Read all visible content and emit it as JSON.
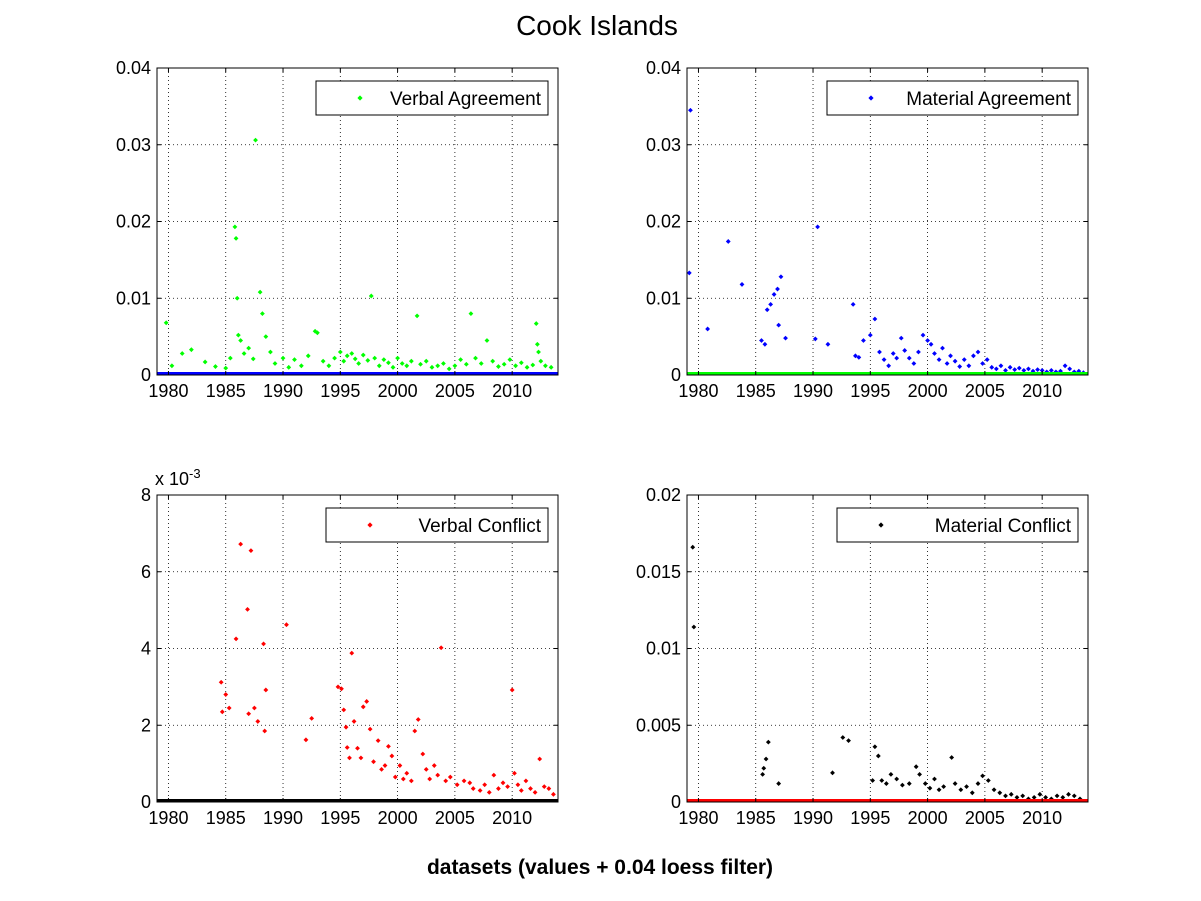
{
  "title": "Cook Islands",
  "xlabel": "datasets (values + 0.04 loess filter)",
  "chart_data": [
    {
      "type": "scatter",
      "legend": "Verbal Agreement",
      "legend_location": "top-right",
      "color": "#00ff00",
      "filter_color": "#0000ff",
      "grid": true,
      "xlim": [
        1979,
        2014
      ],
      "ylim": [
        0,
        0.04
      ],
      "xticks": [
        1980,
        1985,
        1990,
        1995,
        2000,
        2005,
        2010
      ],
      "yticks": [
        0,
        0.01,
        0.02,
        0.03,
        0.04
      ],
      "ytick_labels": [
        "0",
        "0.01",
        "0.02",
        "0.03",
        "0.04"
      ],
      "scale_label": "",
      "filter": {
        "x": [
          1979,
          2014
        ],
        "y": [
          0.0001,
          0.0001
        ]
      },
      "points": [
        [
          1979.8,
          0.0068
        ],
        [
          1980.3,
          0.0012
        ],
        [
          1981.2,
          0.0028
        ],
        [
          1982.0,
          0.0033
        ],
        [
          1983.2,
          0.0017
        ],
        [
          1984.1,
          0.0011
        ],
        [
          1985.0,
          0.0009
        ],
        [
          1985.4,
          0.0022
        ],
        [
          1985.8,
          0.0193
        ],
        [
          1985.9,
          0.0178
        ],
        [
          1986.0,
          0.01
        ],
        [
          1986.1,
          0.0052
        ],
        [
          1986.3,
          0.0045
        ],
        [
          1986.6,
          0.0028
        ],
        [
          1987.0,
          0.0035
        ],
        [
          1987.4,
          0.0021
        ],
        [
          1987.6,
          0.0306
        ],
        [
          1988.0,
          0.0108
        ],
        [
          1988.2,
          0.008
        ],
        [
          1988.5,
          0.005
        ],
        [
          1988.9,
          0.003
        ],
        [
          1989.3,
          0.0015
        ],
        [
          1990.0,
          0.0022
        ],
        [
          1990.5,
          0.001
        ],
        [
          1991.0,
          0.002
        ],
        [
          1991.6,
          0.0012
        ],
        [
          1992.2,
          0.0025
        ],
        [
          1992.8,
          0.0057
        ],
        [
          1993.0,
          0.0055
        ],
        [
          1993.5,
          0.0018
        ],
        [
          1994.0,
          0.0012
        ],
        [
          1994.5,
          0.0022
        ],
        [
          1995.0,
          0.003
        ],
        [
          1995.3,
          0.0018
        ],
        [
          1995.6,
          0.0025
        ],
        [
          1996.0,
          0.0028
        ],
        [
          1996.3,
          0.0021
        ],
        [
          1996.6,
          0.0015
        ],
        [
          1997.0,
          0.0026
        ],
        [
          1997.4,
          0.0019
        ],
        [
          1997.7,
          0.0103
        ],
        [
          1998.0,
          0.0022
        ],
        [
          1998.4,
          0.0012
        ],
        [
          1998.8,
          0.002
        ],
        [
          1999.2,
          0.0016
        ],
        [
          1999.6,
          0.001
        ],
        [
          2000.0,
          0.0022
        ],
        [
          2000.4,
          0.0015
        ],
        [
          2000.8,
          0.0012
        ],
        [
          2001.2,
          0.0018
        ],
        [
          2001.7,
          0.0077
        ],
        [
          2002.0,
          0.0014
        ],
        [
          2002.5,
          0.0018
        ],
        [
          2003.0,
          0.001
        ],
        [
          2003.5,
          0.0012
        ],
        [
          2004.0,
          0.0015
        ],
        [
          2004.5,
          0.0008
        ],
        [
          2005.0,
          0.0012
        ],
        [
          2005.5,
          0.002
        ],
        [
          2006.0,
          0.0014
        ],
        [
          2006.4,
          0.008
        ],
        [
          2006.8,
          0.0022
        ],
        [
          2007.3,
          0.0015
        ],
        [
          2007.8,
          0.0045
        ],
        [
          2008.3,
          0.0018
        ],
        [
          2008.8,
          0.0011
        ],
        [
          2009.3,
          0.0014
        ],
        [
          2009.8,
          0.002
        ],
        [
          2010.3,
          0.0012
        ],
        [
          2010.8,
          0.0016
        ],
        [
          2011.3,
          0.001
        ],
        [
          2011.8,
          0.0013
        ],
        [
          2012.1,
          0.0067
        ],
        [
          2012.2,
          0.004
        ],
        [
          2012.3,
          0.003
        ],
        [
          2012.5,
          0.0018
        ],
        [
          2012.9,
          0.0012
        ],
        [
          2013.4,
          0.001
        ]
      ]
    },
    {
      "type": "scatter",
      "legend": "Material Agreement",
      "legend_location": "top-right",
      "color": "#0000ff",
      "filter_color": "#00ff00",
      "grid": true,
      "xlim": [
        1979,
        2014
      ],
      "ylim": [
        0,
        0.04
      ],
      "xticks": [
        1980,
        1985,
        1990,
        1995,
        2000,
        2005,
        2010
      ],
      "yticks": [
        0,
        0.01,
        0.02,
        0.03,
        0.04
      ],
      "ytick_labels": [
        "0",
        "0.01",
        "0.02",
        "0.03",
        "0.04"
      ],
      "scale_label": "",
      "filter": {
        "x": [
          1979,
          2014
        ],
        "y": [
          0.0001,
          0.0001
        ]
      },
      "points": [
        [
          1979.3,
          0.0345
        ],
        [
          1979.2,
          0.0133
        ],
        [
          1980.8,
          0.006
        ],
        [
          1982.6,
          0.0174
        ],
        [
          1983.8,
          0.0118
        ],
        [
          1985.5,
          0.0045
        ],
        [
          1985.8,
          0.004
        ],
        [
          1986.0,
          0.0085
        ],
        [
          1986.3,
          0.0092
        ],
        [
          1986.6,
          0.0105
        ],
        [
          1986.9,
          0.0112
        ],
        [
          1987.2,
          0.0128
        ],
        [
          1987.0,
          0.0065
        ],
        [
          1987.6,
          0.0048
        ],
        [
          1990.4,
          0.0193
        ],
        [
          1990.2,
          0.0047
        ],
        [
          1991.3,
          0.004
        ],
        [
          1993.5,
          0.0092
        ],
        [
          1993.7,
          0.0025
        ],
        [
          1994.0,
          0.0023
        ],
        [
          1994.4,
          0.0045
        ],
        [
          1995.0,
          0.0052
        ],
        [
          1995.4,
          0.0073
        ],
        [
          1995.8,
          0.003
        ],
        [
          1996.2,
          0.002
        ],
        [
          1996.6,
          0.0012
        ],
        [
          1997.0,
          0.0028
        ],
        [
          1997.3,
          0.0022
        ],
        [
          1997.7,
          0.0048
        ],
        [
          1998.0,
          0.0032
        ],
        [
          1998.4,
          0.0022
        ],
        [
          1998.8,
          0.0015
        ],
        [
          1999.2,
          0.003
        ],
        [
          1999.6,
          0.0052
        ],
        [
          2000.0,
          0.0045
        ],
        [
          2000.3,
          0.004
        ],
        [
          2000.6,
          0.0028
        ],
        [
          2001.0,
          0.002
        ],
        [
          2001.3,
          0.0035
        ],
        [
          2001.7,
          0.0015
        ],
        [
          2002.0,
          0.0025
        ],
        [
          2002.4,
          0.0018
        ],
        [
          2002.8,
          0.0011
        ],
        [
          2003.2,
          0.002
        ],
        [
          2003.6,
          0.0012
        ],
        [
          2004.0,
          0.0025
        ],
        [
          2004.4,
          0.003
        ],
        [
          2004.8,
          0.0015
        ],
        [
          2005.2,
          0.002
        ],
        [
          2005.6,
          0.001
        ],
        [
          2006.0,
          0.0008
        ],
        [
          2006.4,
          0.0012
        ],
        [
          2006.8,
          0.0006
        ],
        [
          2007.2,
          0.001
        ],
        [
          2007.6,
          0.0007
        ],
        [
          2008.0,
          0.0009
        ],
        [
          2008.4,
          0.0006
        ],
        [
          2008.8,
          0.0008
        ],
        [
          2009.2,
          0.0005
        ],
        [
          2009.6,
          0.0007
        ],
        [
          2010.0,
          0.0006
        ],
        [
          2010.4,
          0.0004
        ],
        [
          2010.8,
          0.0006
        ],
        [
          2011.2,
          0.0004
        ],
        [
          2011.6,
          0.0005
        ],
        [
          2012.0,
          0.0012
        ],
        [
          2012.4,
          0.0008
        ],
        [
          2012.8,
          0.0004
        ],
        [
          2013.2,
          0.0005
        ],
        [
          2013.6,
          0.0003
        ]
      ]
    },
    {
      "type": "scatter",
      "legend": "Verbal Conflict",
      "legend_location": "top-right",
      "color": "#ff0000",
      "filter_color": "#000000",
      "grid": true,
      "xlim": [
        1979,
        2014
      ],
      "ylim": [
        0,
        8
      ],
      "xticks": [
        1980,
        1985,
        1990,
        1995,
        2000,
        2005,
        2010
      ],
      "yticks": [
        0,
        2,
        4,
        6,
        8
      ],
      "ytick_labels": [
        "0",
        "2",
        "4",
        "6",
        "8"
      ],
      "scale_label": "x 10",
      "scale_exponent": "-3",
      "filter": {
        "x": [
          1979,
          2014
        ],
        "y": [
          0.02,
          0.02
        ]
      },
      "points": [
        [
          1984.6,
          3.12
        ],
        [
          1984.7,
          2.35
        ],
        [
          1985.0,
          2.8
        ],
        [
          1985.3,
          2.45
        ],
        [
          1985.9,
          4.25
        ],
        [
          1986.3,
          6.72
        ],
        [
          1986.9,
          5.02
        ],
        [
          1987.2,
          6.55
        ],
        [
          1987.0,
          2.3
        ],
        [
          1987.5,
          2.45
        ],
        [
          1987.8,
          2.1
        ],
        [
          1988.3,
          4.12
        ],
        [
          1988.5,
          2.92
        ],
        [
          1988.4,
          1.85
        ],
        [
          1990.3,
          4.62
        ],
        [
          1992.0,
          1.62
        ],
        [
          1992.5,
          2.18
        ],
        [
          1994.8,
          3.0
        ],
        [
          1995.1,
          2.95
        ],
        [
          1995.3,
          2.4
        ],
        [
          1995.5,
          1.95
        ],
        [
          1995.6,
          1.42
        ],
        [
          1995.8,
          1.15
        ],
        [
          1996.0,
          3.88
        ],
        [
          1996.2,
          2.1
        ],
        [
          1996.5,
          1.4
        ],
        [
          1996.8,
          1.15
        ],
        [
          1997.0,
          2.48
        ],
        [
          1997.3,
          2.62
        ],
        [
          1997.6,
          1.9
        ],
        [
          1997.9,
          1.05
        ],
        [
          1998.3,
          1.6
        ],
        [
          1998.6,
          0.85
        ],
        [
          1998.9,
          0.95
        ],
        [
          1999.2,
          1.45
        ],
        [
          1999.5,
          1.2
        ],
        [
          1999.8,
          0.65
        ],
        [
          2000.2,
          0.95
        ],
        [
          2000.5,
          0.6
        ],
        [
          2000.8,
          0.75
        ],
        [
          2001.2,
          0.55
        ],
        [
          2001.5,
          1.85
        ],
        [
          2001.8,
          2.15
        ],
        [
          2002.2,
          1.25
        ],
        [
          2002.5,
          0.85
        ],
        [
          2002.8,
          0.6
        ],
        [
          2003.2,
          0.95
        ],
        [
          2003.5,
          0.7
        ],
        [
          2003.8,
          4.02
        ],
        [
          2004.2,
          0.55
        ],
        [
          2004.6,
          0.65
        ],
        [
          2005.2,
          0.45
        ],
        [
          2005.8,
          0.55
        ],
        [
          2006.3,
          0.5
        ],
        [
          2006.6,
          0.35
        ],
        [
          2007.2,
          0.3
        ],
        [
          2007.6,
          0.45
        ],
        [
          2008.0,
          0.25
        ],
        [
          2008.4,
          0.7
        ],
        [
          2008.8,
          0.35
        ],
        [
          2009.2,
          0.5
        ],
        [
          2009.6,
          0.4
        ],
        [
          2010.0,
          2.92
        ],
        [
          2010.2,
          0.75
        ],
        [
          2010.5,
          0.45
        ],
        [
          2010.8,
          0.3
        ],
        [
          2011.2,
          0.55
        ],
        [
          2011.6,
          0.35
        ],
        [
          2012.0,
          0.25
        ],
        [
          2012.4,
          1.12
        ],
        [
          2012.8,
          0.4
        ],
        [
          2013.2,
          0.35
        ],
        [
          2013.6,
          0.2
        ]
      ]
    },
    {
      "type": "scatter",
      "legend": "Material Conflict",
      "legend_location": "top-right",
      "color": "#000000",
      "filter_color": "#ff0000",
      "grid": true,
      "xlim": [
        1979,
        2014
      ],
      "ylim": [
        0,
        0.02
      ],
      "xticks": [
        1980,
        1985,
        1990,
        1995,
        2000,
        2005,
        2010
      ],
      "yticks": [
        0,
        0.005,
        0.01,
        0.015,
        0.02
      ],
      "ytick_labels": [
        "0",
        "0.005",
        "0.01",
        "0.015",
        "0.02"
      ],
      "scale_label": "",
      "filter": {
        "x": [
          1979,
          2014
        ],
        "y": [
          5e-05,
          5e-05
        ]
      },
      "points": [
        [
          1979.5,
          0.0166
        ],
        [
          1979.6,
          0.0114
        ],
        [
          1985.6,
          0.0018
        ],
        [
          1985.7,
          0.0022
        ],
        [
          1985.9,
          0.0028
        ],
        [
          1986.1,
          0.0039
        ],
        [
          1987.0,
          0.0012
        ],
        [
          1991.7,
          0.0019
        ],
        [
          1992.6,
          0.0042
        ],
        [
          1993.1,
          0.004
        ],
        [
          1995.2,
          0.0014
        ],
        [
          1995.4,
          0.0036
        ],
        [
          1995.7,
          0.003
        ],
        [
          1996.0,
          0.0014
        ],
        [
          1996.4,
          0.0012
        ],
        [
          1996.8,
          0.0018
        ],
        [
          1997.3,
          0.0015
        ],
        [
          1997.8,
          0.0011
        ],
        [
          1998.4,
          0.0012
        ],
        [
          1999.0,
          0.0023
        ],
        [
          1999.3,
          0.0018
        ],
        [
          1999.8,
          0.0012
        ],
        [
          2000.2,
          0.0009
        ],
        [
          2000.6,
          0.0015
        ],
        [
          2001.0,
          0.0008
        ],
        [
          2001.4,
          0.001
        ],
        [
          2002.1,
          0.0029
        ],
        [
          2002.4,
          0.0012
        ],
        [
          2002.9,
          0.0008
        ],
        [
          2003.4,
          0.001
        ],
        [
          2003.9,
          0.0006
        ],
        [
          2004.4,
          0.0012
        ],
        [
          2004.8,
          0.0017
        ],
        [
          2005.3,
          0.0014
        ],
        [
          2005.8,
          0.0008
        ],
        [
          2006.3,
          0.0006
        ],
        [
          2006.8,
          0.0004
        ],
        [
          2007.3,
          0.0005
        ],
        [
          2007.8,
          0.0003
        ],
        [
          2008.3,
          0.0004
        ],
        [
          2008.8,
          0.0002
        ],
        [
          2009.3,
          0.0003
        ],
        [
          2009.8,
          0.0005
        ],
        [
          2010.3,
          0.0003
        ],
        [
          2010.8,
          0.0002
        ],
        [
          2011.3,
          0.0004
        ],
        [
          2011.8,
          0.0003
        ],
        [
          2012.3,
          0.0005
        ],
        [
          2012.8,
          0.0004
        ],
        [
          2013.3,
          0.0002
        ]
      ]
    }
  ]
}
